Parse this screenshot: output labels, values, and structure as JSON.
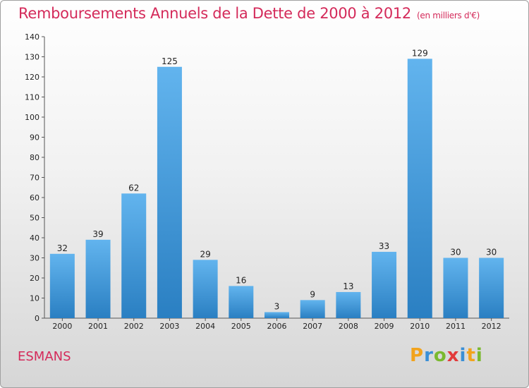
{
  "title": "Remboursements Annuels de la Dette de 2000 à 2012",
  "subtitle": "(en milliers d'€)",
  "commune": "ESMANS",
  "logo": {
    "letters": [
      "P",
      "r",
      "o",
      "x",
      "i",
      "t",
      "i"
    ],
    "colors": [
      "#f2a31c",
      "#3a8fd6",
      "#7ab92f",
      "#e23a3a",
      "#3a8fd6",
      "#f2a31c",
      "#7ab92f"
    ]
  },
  "colors": {
    "bar_light": "#62b4ee",
    "bar_dark": "#2a7fc2",
    "title": "#d42a5a"
  },
  "chart_data": {
    "type": "bar",
    "categories": [
      "2000",
      "2001",
      "2002",
      "2003",
      "2004",
      "2005",
      "2006",
      "2007",
      "2008",
      "2009",
      "2010",
      "2011",
      "2012"
    ],
    "values": [
      32,
      39,
      62,
      125,
      29,
      16,
      3,
      9,
      13,
      33,
      129,
      30,
      30
    ],
    "ylim": [
      0,
      140
    ],
    "yticks": [
      0,
      10,
      20,
      30,
      40,
      50,
      60,
      70,
      80,
      90,
      100,
      110,
      120,
      130,
      140
    ],
    "grid": false,
    "legend": false
  }
}
